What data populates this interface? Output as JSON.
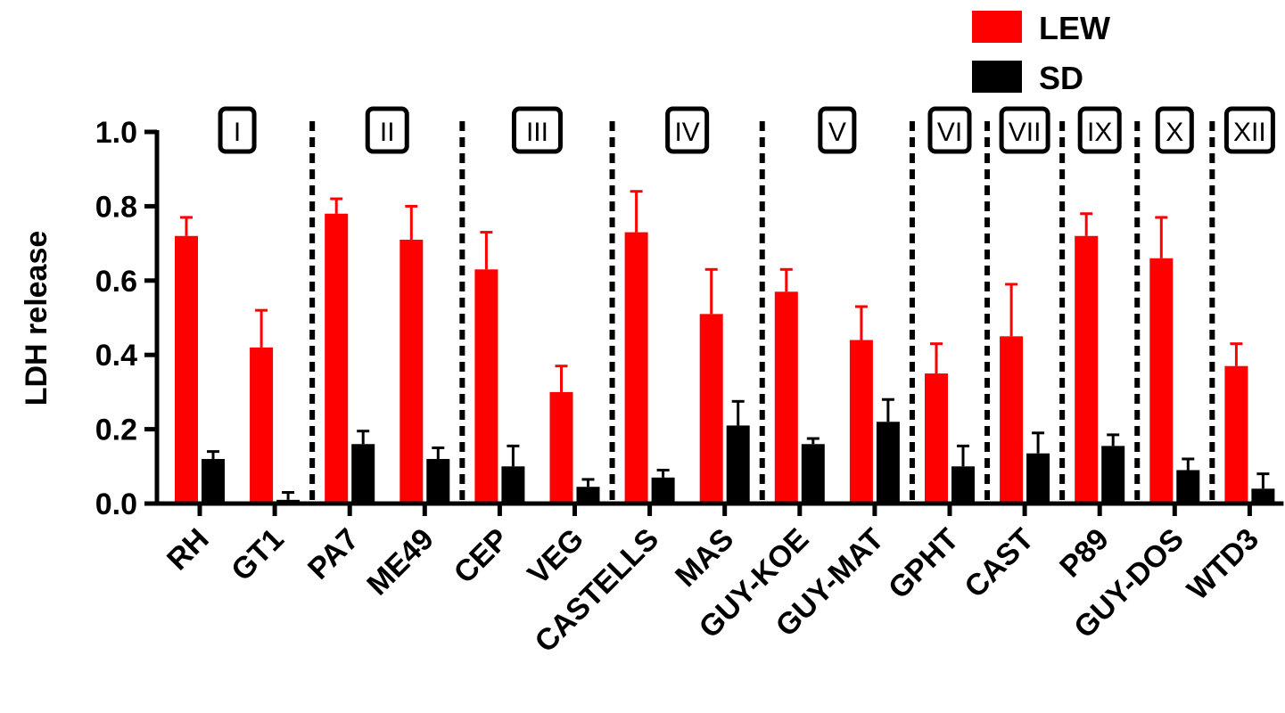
{
  "chart_data": {
    "type": "bar",
    "ylabel": "LDH release",
    "ylim": [
      0,
      1.0
    ],
    "yticks": [
      "0.0",
      "0.2",
      "0.4",
      "0.6",
      "0.8",
      "1.0"
    ],
    "categories": [
      "RH",
      "GT1",
      "PA7",
      "ME49",
      "CEP",
      "VEG",
      "CASTELLS",
      "MAS",
      "GUY-KOE",
      "GUY-MAT",
      "GPHT",
      "CAST",
      "P89",
      "GUY-DOS",
      "WTD3"
    ],
    "series": [
      {
        "name": "LEW",
        "color": "#ff0000",
        "values": [
          0.72,
          0.42,
          0.78,
          0.71,
          0.63,
          0.3,
          0.73,
          0.51,
          0.57,
          0.44,
          0.35,
          0.45,
          0.72,
          0.66,
          0.37
        ],
        "errors": [
          0.05,
          0.1,
          0.04,
          0.09,
          0.1,
          0.07,
          0.11,
          0.12,
          0.06,
          0.09,
          0.08,
          0.14,
          0.06,
          0.11,
          0.06
        ]
      },
      {
        "name": "SD",
        "color": "#000000",
        "values": [
          0.12,
          0.01,
          0.16,
          0.12,
          0.1,
          0.045,
          0.07,
          0.21,
          0.16,
          0.22,
          0.1,
          0.135,
          0.155,
          0.09,
          0.04
        ],
        "errors": [
          0.02,
          0.02,
          0.035,
          0.03,
          0.055,
          0.02,
          0.02,
          0.065,
          0.015,
          0.06,
          0.055,
          0.055,
          0.03,
          0.03,
          0.04
        ]
      }
    ],
    "groups": [
      {
        "label": "I",
        "start": 0,
        "end": 1
      },
      {
        "label": "II",
        "start": 2,
        "end": 3
      },
      {
        "label": "III",
        "start": 4,
        "end": 5
      },
      {
        "label": "IV",
        "start": 6,
        "end": 7
      },
      {
        "label": "V",
        "start": 8,
        "end": 9
      },
      {
        "label": "VI",
        "start": 10,
        "end": 10
      },
      {
        "label": "VII",
        "start": 11,
        "end": 11
      },
      {
        "label": "IX",
        "start": 12,
        "end": 12
      },
      {
        "label": "X",
        "start": 13,
        "end": 13
      },
      {
        "label": "XII",
        "start": 14,
        "end": 14
      }
    ],
    "legend_position": "top-right",
    "grid": false
  }
}
